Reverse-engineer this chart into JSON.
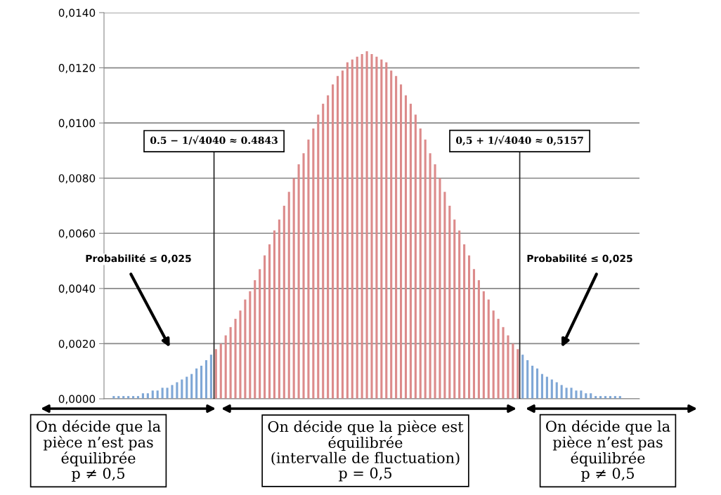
{
  "chart_data": {
    "type": "bar",
    "x": [
      0.4735,
      0.474,
      0.4745,
      0.475,
      0.4755,
      0.476,
      0.4765,
      0.477,
      0.4775,
      0.478,
      0.4785,
      0.479,
      0.4795,
      0.48,
      0.4805,
      0.481,
      0.4815,
      0.482,
      0.4825,
      0.483,
      0.4835,
      0.484,
      0.4845,
      0.485,
      0.4855,
      0.486,
      0.4865,
      0.487,
      0.4875,
      0.488,
      0.4885,
      0.489,
      0.4895,
      0.49,
      0.4905,
      0.491,
      0.4915,
      0.492,
      0.4925,
      0.493,
      0.4935,
      0.494,
      0.4945,
      0.495,
      0.4955,
      0.496,
      0.4965,
      0.497,
      0.4975,
      0.498,
      0.4985,
      0.499,
      0.4995,
      0.5,
      0.5005,
      0.501,
      0.5015,
      0.502,
      0.5025,
      0.503,
      0.5035,
      0.504,
      0.5045,
      0.505,
      0.5055,
      0.506,
      0.5065,
      0.507,
      0.5075,
      0.508,
      0.5085,
      0.509,
      0.5095,
      0.51,
      0.5105,
      0.511,
      0.5115,
      0.512,
      0.5125,
      0.513,
      0.5135,
      0.514,
      0.5145,
      0.515,
      0.5155,
      0.516,
      0.5165,
      0.517,
      0.5175,
      0.518,
      0.5185,
      0.519,
      0.5195,
      0.52,
      0.5205,
      0.521,
      0.5215,
      0.522,
      0.5225,
      0.523,
      0.5235,
      0.524,
      0.5245,
      0.525,
      0.5255,
      0.526,
      0.5265
    ],
    "values": [
      0.0,
      0.0001,
      0.0001,
      0.0001,
      0.0001,
      0.0001,
      0.0001,
      0.0002,
      0.0002,
      0.0003,
      0.0003,
      0.0004,
      0.0004,
      0.0005,
      0.0006,
      0.0007,
      0.0008,
      0.0009,
      0.0011,
      0.0012,
      0.0014,
      0.0016,
      0.0018,
      0.002,
      0.0023,
      0.0026,
      0.0029,
      0.0032,
      0.0036,
      0.0039,
      0.0043,
      0.0047,
      0.0052,
      0.0056,
      0.0061,
      0.0065,
      0.007,
      0.0075,
      0.008,
      0.0085,
      0.0089,
      0.0094,
      0.0098,
      0.0103,
      0.0107,
      0.011,
      0.0114,
      0.0117,
      0.0119,
      0.0122,
      0.0123,
      0.0124,
      0.0125,
      0.0126,
      0.0125,
      0.0124,
      0.0123,
      0.0122,
      0.0119,
      0.0117,
      0.0114,
      0.011,
      0.0107,
      0.0103,
      0.0098,
      0.0094,
      0.0089,
      0.0085,
      0.008,
      0.0075,
      0.007,
      0.0065,
      0.0061,
      0.0056,
      0.0052,
      0.0047,
      0.0043,
      0.0039,
      0.0036,
      0.0032,
      0.0029,
      0.0026,
      0.0023,
      0.002,
      0.0018,
      0.0016,
      0.0014,
      0.0012,
      0.0011,
      0.0009,
      0.0008,
      0.0007,
      0.0006,
      0.0005,
      0.0004,
      0.0004,
      0.0003,
      0.0003,
      0.0002,
      0.0002,
      0.0001,
      0.0001,
      0.0001,
      0.0001,
      0.0001,
      0.0001,
      0.0
    ],
    "colors": [
      "#7fa7d6",
      "#7fa7d6",
      "#7fa7d6",
      "#7fa7d6",
      "#7fa7d6",
      "#7fa7d6",
      "#7fa7d6",
      "#7fa7d6",
      "#7fa7d6",
      "#7fa7d6",
      "#7fa7d6",
      "#7fa7d6",
      "#7fa7d6",
      "#7fa7d6",
      "#7fa7d6",
      "#7fa7d6",
      "#7fa7d6",
      "#7fa7d6",
      "#7fa7d6",
      "#7fa7d6",
      "#7fa7d6",
      "#7fa7d6",
      "#dc8b8b",
      "#dc8b8b",
      "#dc8b8b",
      "#dc8b8b",
      "#dc8b8b",
      "#dc8b8b",
      "#dc8b8b",
      "#dc8b8b",
      "#dc8b8b",
      "#dc8b8b",
      "#dc8b8b",
      "#dc8b8b",
      "#dc8b8b",
      "#dc8b8b",
      "#dc8b8b",
      "#dc8b8b",
      "#dc8b8b",
      "#dc8b8b",
      "#dc8b8b",
      "#dc8b8b",
      "#dc8b8b",
      "#dc8b8b",
      "#dc8b8b",
      "#dc8b8b",
      "#dc8b8b",
      "#dc8b8b",
      "#dc8b8b",
      "#dc8b8b",
      "#dc8b8b",
      "#dc8b8b",
      "#dc8b8b",
      "#dc8b8b",
      "#dc8b8b",
      "#dc8b8b",
      "#dc8b8b",
      "#dc8b8b",
      "#dc8b8b",
      "#dc8b8b",
      "#dc8b8b",
      "#dc8b8b",
      "#dc8b8b",
      "#dc8b8b",
      "#dc8b8b",
      "#dc8b8b",
      "#dc8b8b",
      "#dc8b8b",
      "#dc8b8b",
      "#dc8b8b",
      "#dc8b8b",
      "#dc8b8b",
      "#dc8b8b",
      "#dc8b8b",
      "#dc8b8b",
      "#dc8b8b",
      "#dc8b8b",
      "#dc8b8b",
      "#dc8b8b",
      "#dc8b8b",
      "#dc8b8b",
      "#dc8b8b",
      "#dc8b8b",
      "#dc8b8b",
      "#dc8b8b",
      "#7fa7d6",
      "#7fa7d6",
      "#7fa7d6",
      "#7fa7d6",
      "#7fa7d6",
      "#7fa7d6",
      "#7fa7d6",
      "#7fa7d6",
      "#7fa7d6",
      "#7fa7d6",
      "#7fa7d6",
      "#7fa7d6",
      "#7fa7d6",
      "#7fa7d6",
      "#7fa7d6",
      "#7fa7d6",
      "#7fa7d6",
      "#7fa7d6",
      "#7fa7d6",
      "#7fa7d6",
      "#7fa7d6",
      "#7fa7d6"
    ],
    "xlim": [
      0.473,
      0.528
    ],
    "ylim": [
      0,
      0.014
    ],
    "yticks": [
      {
        "value": 0,
        "label": "0,0000"
      },
      {
        "value": 0.002,
        "label": "0,0020"
      },
      {
        "value": 0.004,
        "label": "0,0040"
      },
      {
        "value": 0.006,
        "label": "0,0060"
      },
      {
        "value": 0.008,
        "label": "0,0080"
      },
      {
        "value": 0.01,
        "label": "0,0100"
      },
      {
        "value": 0.012,
        "label": "0,0120"
      },
      {
        "value": 0.014,
        "label": "0,0140"
      }
    ],
    "tick_labels": "y",
    "grid": "y",
    "ref_lines": [
      {
        "axis": "x",
        "value": 0.4843,
        "label": "0.5 − 1/√4040 ≈ 0.4843",
        "color": "#222222"
      },
      {
        "axis": "x",
        "value": 0.5157,
        "label": "0,5 + 1/√4040 ≈ 0,5157",
        "color": "#222222"
      }
    ],
    "annotations": [
      "Probabilité ≤ 0,025",
      "Probabilité ≤ 0,025",
      "On décide que la\npièce n’est pas\néquilibrée\np ≠ 0,5",
      "On décide que la pièce est\néquilibrée\n(intervalle de fluctuation)\np = 0,5",
      "On décide que la\npièce n’est pas\néquilibrée\np ≠ 0,5"
    ]
  }
}
